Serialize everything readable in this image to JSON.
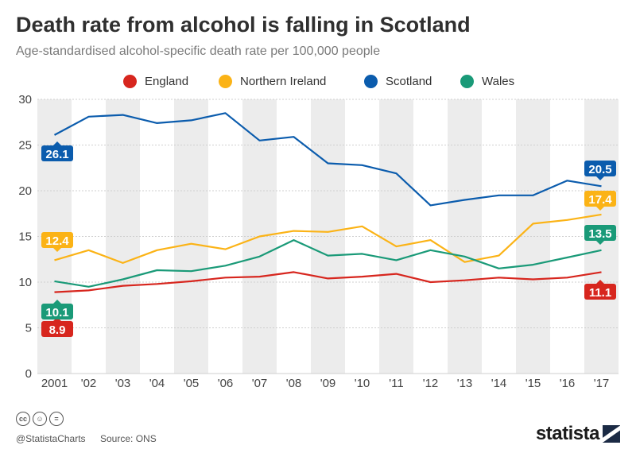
{
  "title": "Death rate from alcohol is falling in Scotland",
  "subtitle": "Age-standardised alcohol-specific death rate per 100,000 people",
  "footer": {
    "handle": "@StatistaCharts",
    "source": "Source: ONS",
    "brand": "statista",
    "license_icons": [
      "cc-icon",
      "by-icon",
      "nd-icon"
    ]
  },
  "chart_data": {
    "type": "line",
    "categories": [
      "2001",
      "'02",
      "'03",
      "'04",
      "'05",
      "'06",
      "'07",
      "'08",
      "'09",
      "'10",
      "'11",
      "'12",
      "'13",
      "'14",
      "'15",
      "'16",
      "'17"
    ],
    "ylim": [
      0,
      30
    ],
    "yticks": [
      0,
      5,
      10,
      15,
      20,
      25,
      30
    ],
    "legend_position": "top-center",
    "grid": "alternating vertical bands",
    "series": [
      {
        "name": "England",
        "color": "#d7261e",
        "values": [
          8.9,
          9.1,
          9.6,
          9.8,
          10.1,
          10.5,
          10.6,
          11.1,
          10.4,
          10.6,
          10.9,
          10.0,
          10.2,
          10.5,
          10.3,
          10.5,
          11.1
        ],
        "start_label": "8.9",
        "end_label": "11.1"
      },
      {
        "name": "Northern Ireland",
        "color": "#fbb316",
        "values": [
          12.4,
          13.5,
          12.1,
          13.5,
          14.2,
          13.6,
          15.0,
          15.6,
          15.5,
          16.1,
          13.9,
          14.6,
          12.2,
          12.9,
          16.4,
          16.8,
          17.4
        ],
        "start_label": "12.4",
        "end_label": "17.4"
      },
      {
        "name": "Scotland",
        "color": "#0b5cad",
        "values": [
          26.1,
          28.1,
          28.3,
          27.4,
          27.7,
          28.5,
          25.5,
          25.9,
          23.0,
          22.8,
          21.9,
          18.4,
          19.0,
          19.5,
          19.5,
          21.1,
          20.5
        ],
        "start_label": "26.1",
        "end_label": "20.5"
      },
      {
        "name": "Wales",
        "color": "#1a9a78",
        "values": [
          10.1,
          9.5,
          10.3,
          11.3,
          11.2,
          11.8,
          12.8,
          14.6,
          12.9,
          13.1,
          12.4,
          13.5,
          12.8,
          11.5,
          11.9,
          12.7,
          13.5
        ],
        "start_label": "10.1",
        "end_label": "13.5"
      }
    ]
  }
}
